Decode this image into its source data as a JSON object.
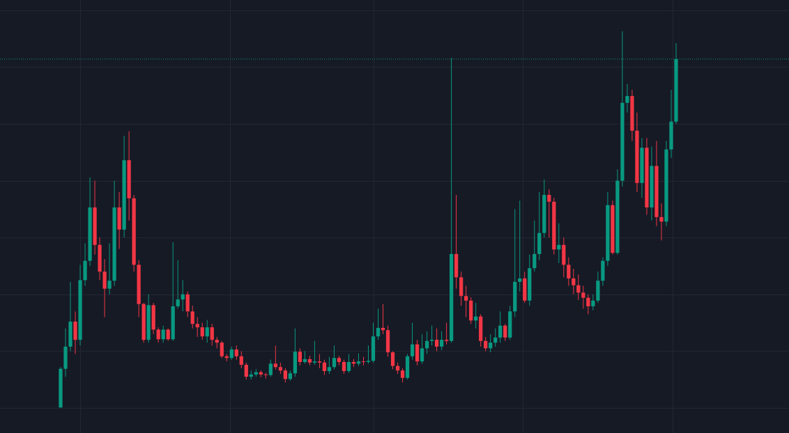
{
  "chart_data": {
    "type": "candlestick",
    "ylim": [
      -44,
      718
    ],
    "yticks": [
      0,
      100,
      200,
      300,
      400,
      500,
      600,
      700
    ],
    "grid": true,
    "up_color": "#089981",
    "down_color": "#f23645",
    "background": "#161a25",
    "grid_color": "#232733",
    "open": [
      1,
      69,
      108,
      152,
      120,
      225,
      259,
      353,
      287,
      240,
      210,
      224,
      353,
      314,
      436,
      369,
      252,
      183,
      120,
      181,
      138,
      121,
      138,
      121,
      179,
      191,
      200,
      170,
      148,
      142,
      126,
      142,
      120,
      115,
      91,
      88,
      103,
      91,
      76,
      55,
      59,
      63,
      59,
      58,
      78,
      72,
      66,
      51,
      61,
      99,
      81,
      86,
      80,
      82,
      80,
      65,
      72,
      88,
      81,
      65,
      81,
      78,
      82,
      81,
      83,
      126,
      141,
      137,
      98,
      74,
      66,
      53,
      91,
      112,
      82,
      105,
      118,
      120,
      108,
      120,
      118,
      271,
      230,
      197,
      189,
      154,
      161,
      118,
      105,
      115,
      124,
      145,
      124,
      170,
      222,
      228,
      189,
      246,
      271,
      308,
      375,
      363,
      279,
      287,
      252,
      228,
      216,
      203,
      194,
      179,
      189,
      224,
      259,
      357,
      273,
      400,
      537,
      549,
      488,
      396,
      458,
      353,
      426,
      336,
      328,
      455,
      504
    ],
    "high": [
      72,
      140,
      222,
      170,
      252,
      290,
      406,
      400,
      300,
      262,
      290,
      400,
      380,
      479,
      487,
      375,
      260,
      185,
      200,
      185,
      142,
      145,
      140,
      292,
      260,
      225,
      205,
      180,
      160,
      150,
      155,
      148,
      125,
      118,
      95,
      108,
      110,
      100,
      80,
      66,
      68,
      66,
      62,
      85,
      110,
      80,
      70,
      66,
      140,
      105,
      100,
      92,
      118,
      95,
      85,
      90,
      110,
      92,
      85,
      95,
      86,
      96,
      90,
      110,
      150,
      175,
      183,
      145,
      100,
      80,
      70,
      95,
      150,
      120,
      130,
      135,
      145,
      140,
      135,
      150,
      616,
      375,
      240,
      215,
      195,
      185,
      165,
      125,
      130,
      140,
      170,
      148,
      180,
      350,
      365,
      240,
      270,
      330,
      380,
      402,
      385,
      370,
      325,
      300,
      265,
      245,
      235,
      215,
      200,
      200,
      240,
      265,
      380,
      365,
      420,
      663,
      570,
      560,
      520,
      475,
      475,
      460,
      470,
      360,
      470,
      560,
      642
    ],
    "low": [
      0,
      55,
      100,
      95,
      110,
      215,
      250,
      270,
      225,
      160,
      200,
      215,
      280,
      300,
      330,
      240,
      160,
      115,
      115,
      130,
      115,
      115,
      118,
      118,
      175,
      170,
      160,
      140,
      125,
      120,
      115,
      110,
      105,
      88,
      82,
      85,
      85,
      70,
      50,
      50,
      55,
      54,
      52,
      55,
      68,
      60,
      45,
      48,
      55,
      75,
      78,
      75,
      76,
      70,
      58,
      60,
      68,
      75,
      60,
      62,
      72,
      74,
      75,
      78,
      80,
      120,
      130,
      90,
      68,
      60,
      45,
      50,
      85,
      75,
      78,
      95,
      110,
      100,
      102,
      112,
      115,
      210,
      180,
      160,
      148,
      140,
      108,
      100,
      98,
      108,
      115,
      118,
      120,
      160,
      205,
      185,
      180,
      240,
      260,
      300,
      300,
      270,
      255,
      230,
      215,
      200,
      190,
      175,
      165,
      172,
      185,
      215,
      250,
      270,
      270,
      390,
      520,
      470,
      380,
      370,
      340,
      330,
      320,
      295,
      320,
      440,
      500
    ],
    "close": [
      69,
      108,
      152,
      120,
      225,
      259,
      353,
      287,
      240,
      210,
      224,
      353,
      314,
      436,
      369,
      252,
      183,
      120,
      181,
      138,
      121,
      138,
      121,
      179,
      191,
      200,
      170,
      148,
      142,
      126,
      142,
      120,
      115,
      91,
      88,
      103,
      91,
      76,
      55,
      59,
      63,
      59,
      58,
      78,
      72,
      66,
      51,
      61,
      99,
      81,
      86,
      80,
      82,
      80,
      65,
      72,
      88,
      81,
      65,
      81,
      78,
      82,
      81,
      83,
      126,
      141,
      137,
      98,
      74,
      66,
      53,
      91,
      112,
      82,
      105,
      118,
      120,
      108,
      120,
      118,
      271,
      230,
      197,
      189,
      154,
      161,
      118,
      105,
      115,
      124,
      145,
      124,
      170,
      222,
      228,
      189,
      246,
      271,
      308,
      375,
      363,
      279,
      287,
      252,
      228,
      216,
      203,
      194,
      179,
      189,
      224,
      259,
      357,
      273,
      400,
      537,
      549,
      488,
      396,
      458,
      353,
      426,
      336,
      328,
      455,
      504,
      614
    ]
  }
}
